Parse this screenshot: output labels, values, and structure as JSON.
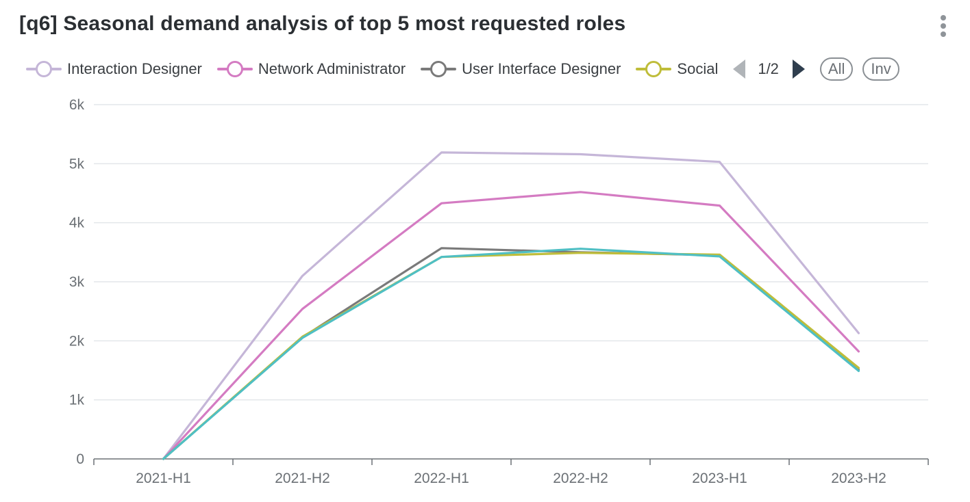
{
  "header": {
    "title": "[q6] Seasonal demand analysis of top 5 most requested roles",
    "menu_icon": "vertical-dots-icon"
  },
  "legend": {
    "items": [
      {
        "label": "Interaction Designer",
        "color": "#c5b6d8"
      },
      {
        "label": "Network Administrator",
        "color": "#d47bc2"
      },
      {
        "label": "User Interface Designer",
        "color": "#7a7a7a"
      },
      {
        "label": "Social",
        "color": "#bfbd3a"
      }
    ],
    "pager_text": "1/2",
    "all_label": "All",
    "inv_label": "Inv"
  },
  "chart_data": {
    "type": "line",
    "categories": [
      "2021-H1",
      "2021-H2",
      "2022-H1",
      "2022-H2",
      "2023-H1",
      "2023-H2"
    ],
    "ylim": [
      0,
      6000
    ],
    "yticks": [
      0,
      1000,
      2000,
      3000,
      4000,
      5000,
      6000
    ],
    "ytick_labels": [
      "0",
      "1k",
      "2k",
      "3k",
      "4k",
      "5k",
      "6k"
    ],
    "grid": true,
    "legend_position": "top",
    "series": [
      {
        "name": "Interaction Designer",
        "color": "#c5b6d8",
        "values": [
          0,
          3100,
          5190,
          5160,
          5030,
          2130
        ]
      },
      {
        "name": "Network Administrator",
        "color": "#d47bc2",
        "values": [
          0,
          2540,
          4330,
          4520,
          4290,
          1820
        ]
      },
      {
        "name": "User Interface Designer",
        "color": "#7a7a7a",
        "values": [
          0,
          2060,
          3570,
          3500,
          3450,
          1510
        ]
      },
      {
        "name": "Social",
        "color": "#bfbd3a",
        "values": [
          0,
          2070,
          3420,
          3490,
          3460,
          1540
        ]
      },
      {
        "color": "#4fbfc4",
        "values": [
          0,
          2050,
          3420,
          3560,
          3430,
          1490
        ]
      }
    ]
  }
}
